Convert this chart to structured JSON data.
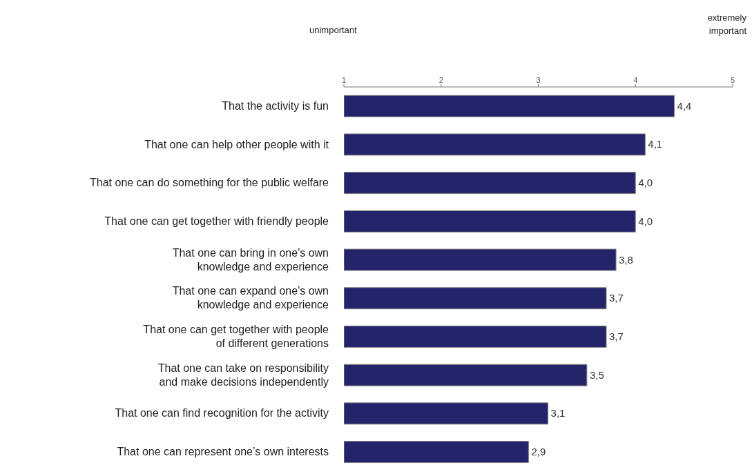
{
  "chart_data": {
    "type": "bar",
    "orientation": "horizontal",
    "categories": [
      "That the activity is fun",
      "That one can help other people with it",
      "That one can do something for the public welfare",
      "That one can get together with friendly people",
      "That one can bring in one's own knowledge and experience",
      "That one can expand one's own knowledge and experience",
      "That one can get together with people of different generations",
      "That one can take on responsibility and make decisions independently",
      "That one can find recognition for the activity",
      "That one can represent one’s own interests"
    ],
    "values": [
      4.4,
      4.1,
      4.0,
      4.0,
      3.8,
      3.7,
      3.7,
      3.5,
      3.1,
      2.9
    ],
    "value_labels": [
      "4,4",
      "4,1",
      "4,0",
      "4,0",
      "3,8",
      "3,7",
      "3,7",
      "3,5",
      "3,1",
      "2,9"
    ],
    "color": "#24246b",
    "xlim": [
      1,
      5
    ],
    "xticks": [
      1,
      2,
      3,
      4,
      5
    ],
    "annotations": [
      "unimportant",
      "extremely important"
    ],
    "grid": false,
    "legend": false
  }
}
